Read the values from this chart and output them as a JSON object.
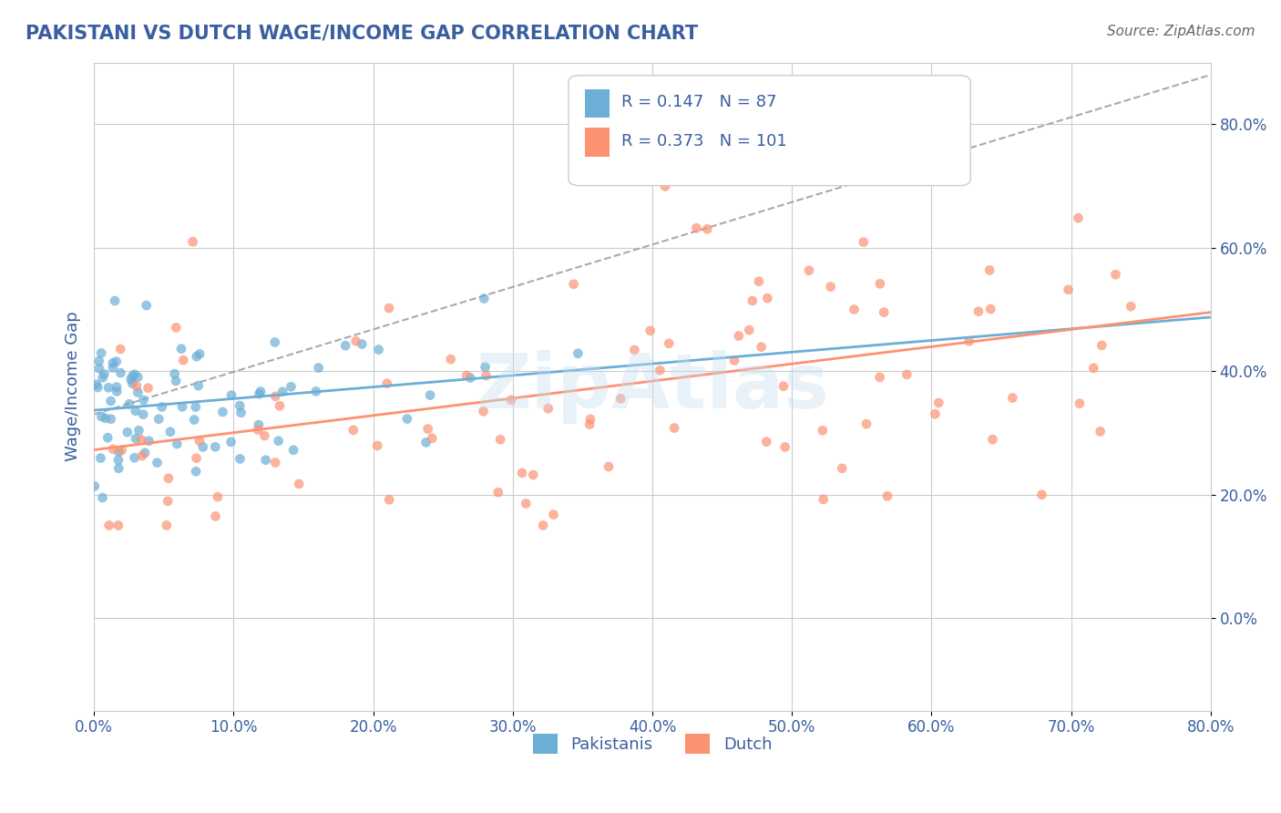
{
  "title": "PAKISTANI VS DUTCH WAGE/INCOME GAP CORRELATION CHART",
  "source": "Source: ZipAtlas.com",
  "xmin": 0.0,
  "xmax": 0.8,
  "ymin": -0.15,
  "ymax": 0.9,
  "pakistani_color": "#6baed6",
  "dutch_color": "#fc9272",
  "pakistani_R": 0.147,
  "pakistani_N": 87,
  "dutch_R": 0.373,
  "dutch_N": 101,
  "watermark": "ZipAtlas",
  "background_color": "#ffffff",
  "grid_color": "#cccccc",
  "title_color": "#3a5fa0",
  "axis_label_color": "#3a5fa0",
  "tick_color": "#3a5fa0"
}
